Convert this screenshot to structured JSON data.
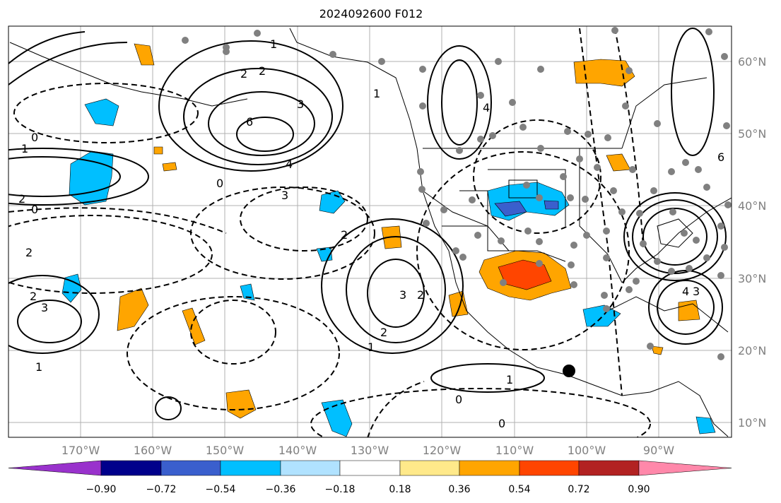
{
  "title": "2024092600 F012",
  "latitude_labels": [
    "60°N",
    "50°N",
    "40°N",
    "30°N",
    "20°N",
    "10°N"
  ],
  "longitude_labels": [
    "170°W",
    "160°W",
    "150°W",
    "140°W",
    "130°W",
    "120°W",
    "110°W",
    "100°W",
    "90°W"
  ],
  "colorbar": {
    "ticks": [
      "−0.90",
      "−0.72",
      "−0.54",
      "−0.36",
      "−0.18",
      "0.18",
      "0.36",
      "0.54",
      "0.72",
      "0.90"
    ],
    "colors": [
      "#9932cc",
      "#00008b",
      "#3a5fcd",
      "#00bfff",
      "#b0e2ff",
      "#ffffff",
      "#ffe98a",
      "#ffa500",
      "#ff4500",
      "#b22222",
      "#ff88aa"
    ]
  },
  "shading_colors": {
    "light_blue": "#00bfff",
    "pale_blue": "#b0e2ff",
    "mid_blue": "#3a5fcd",
    "yellow": "#ffe98a",
    "orange": "#ffa500",
    "red_orange": "#ff4500"
  },
  "contour_labels": [
    {
      "text": "6"
    },
    {
      "text": "3"
    },
    {
      "text": "4"
    },
    {
      "text": "2"
    },
    {
      "text": "0"
    },
    {
      "text": "1"
    },
    {
      "text": "2"
    },
    {
      "text": "3"
    },
    {
      "text": "2"
    },
    {
      "text": "0"
    },
    {
      "text": "1"
    },
    {
      "text": "2"
    },
    {
      "text": "3"
    },
    {
      "text": "2"
    },
    {
      "text": "1"
    },
    {
      "text": "0"
    },
    {
      "text": "2"
    },
    {
      "text": "3"
    },
    {
      "text": "2"
    },
    {
      "text": "1"
    },
    {
      "text": "1"
    },
    {
      "text": "0"
    },
    {
      "text": "0"
    },
    {
      "text": "4"
    },
    {
      "text": "3"
    },
    {
      "text": "6"
    },
    {
      "text": "4"
    },
    {
      "text": "2"
    },
    {
      "text": "1"
    }
  ]
}
